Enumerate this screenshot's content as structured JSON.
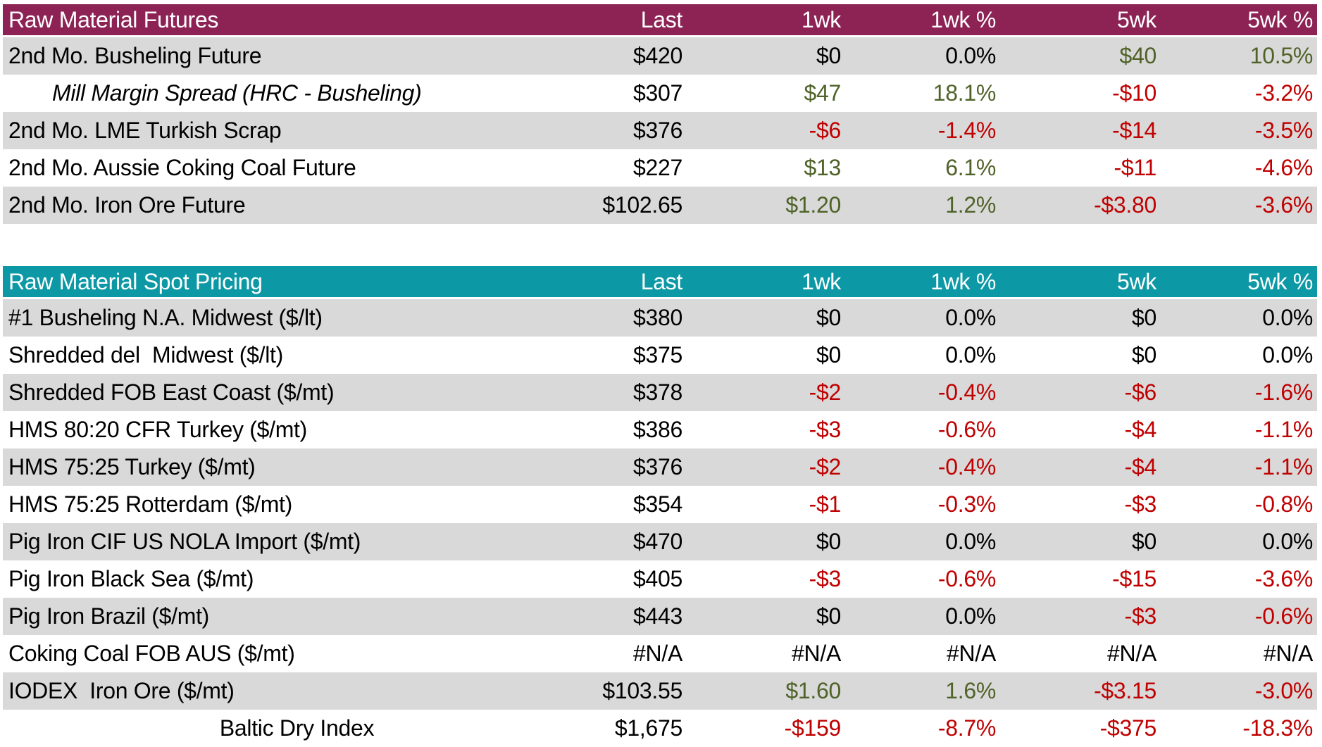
{
  "colors": {
    "futures_header_bg": "#8D2355",
    "spot_header_bg": "#0D98A6",
    "row_alt_bg": "#D9D9D9",
    "positive_text": "#4F6228",
    "negative_text": "#C00000",
    "neutral_text": "#000000",
    "header_text": "#FFFFFF"
  },
  "chart_data": [
    {
      "type": "table",
      "title": "Raw Material Futures",
      "columns": [
        "Last",
        "1wk",
        "1wk %",
        "5wk",
        "5wk %"
      ],
      "rows": [
        {
          "label": "2nd Mo. Busheling Future",
          "values": [
            "$420",
            "$0",
            "0.0%",
            "$40",
            "10.5%"
          ],
          "colors": [
            "#000000",
            "#000000",
            "#000000",
            "#4F6228",
            "#4F6228"
          ]
        },
        {
          "label": "Mill Margin Spread (HRC - Busheling)",
          "values": [
            "$307",
            "$47",
            "18.1%",
            "-$10",
            "-3.2%"
          ],
          "colors": [
            "#000000",
            "#4F6228",
            "#4F6228",
            "#C00000",
            "#C00000"
          ]
        },
        {
          "label": "2nd Mo. LME Turkish Scrap",
          "values": [
            "$376",
            "-$6",
            "-1.4%",
            "-$14",
            "-3.5%"
          ],
          "colors": [
            "#000000",
            "#C00000",
            "#C00000",
            "#C00000",
            "#C00000"
          ]
        },
        {
          "label": "2nd Mo. Aussie Coking Coal Future",
          "values": [
            "$227",
            "$13",
            "6.1%",
            "-$11",
            "-4.6%"
          ],
          "colors": [
            "#000000",
            "#4F6228",
            "#4F6228",
            "#C00000",
            "#C00000"
          ]
        },
        {
          "label": "2nd Mo. Iron Ore Future",
          "values": [
            "$102.65",
            "$1.20",
            "1.2%",
            "-$3.80",
            "-3.6%"
          ],
          "colors": [
            "#000000",
            "#4F6228",
            "#4F6228",
            "#C00000",
            "#C00000"
          ]
        }
      ]
    },
    {
      "type": "table",
      "title": "Raw Material Spot Pricing",
      "columns": [
        "Last",
        "1wk",
        "1wk %",
        "5wk",
        "5wk %"
      ],
      "rows": [
        {
          "label": "#1 Busheling N.A. Midwest ($/lt)",
          "values": [
            "$380",
            "$0",
            "0.0%",
            "$0",
            "0.0%"
          ],
          "colors": [
            "#000000",
            "#000000",
            "#000000",
            "#000000",
            "#000000"
          ]
        },
        {
          "label": "Shredded del  Midwest ($/lt)",
          "values": [
            "$375",
            "$0",
            "0.0%",
            "$0",
            "0.0%"
          ],
          "colors": [
            "#000000",
            "#000000",
            "#000000",
            "#000000",
            "#000000"
          ]
        },
        {
          "label": "Shredded FOB East Coast ($/mt)",
          "values": [
            "$378",
            "-$2",
            "-0.4%",
            "-$6",
            "-1.6%"
          ],
          "colors": [
            "#000000",
            "#C00000",
            "#C00000",
            "#C00000",
            "#C00000"
          ]
        },
        {
          "label": "HMS 80:20 CFR Turkey ($/mt)",
          "values": [
            "$386",
            "-$3",
            "-0.6%",
            "-$4",
            "-1.1%"
          ],
          "colors": [
            "#000000",
            "#C00000",
            "#C00000",
            "#C00000",
            "#C00000"
          ]
        },
        {
          "label": "HMS 75:25 Turkey ($/mt)",
          "values": [
            "$376",
            "-$2",
            "-0.4%",
            "-$4",
            "-1.1%"
          ],
          "colors": [
            "#000000",
            "#C00000",
            "#C00000",
            "#C00000",
            "#C00000"
          ]
        },
        {
          "label": "HMS 75:25 Rotterdam ($/mt)",
          "values": [
            "$354",
            "-$1",
            "-0.3%",
            "-$3",
            "-0.8%"
          ],
          "colors": [
            "#000000",
            "#C00000",
            "#C00000",
            "#C00000",
            "#C00000"
          ]
        },
        {
          "label": "Pig Iron CIF US NOLA Import ($/mt)",
          "values": [
            "$470",
            "$0",
            "0.0%",
            "$0",
            "0.0%"
          ],
          "colors": [
            "#000000",
            "#000000",
            "#000000",
            "#000000",
            "#000000"
          ]
        },
        {
          "label": "Pig Iron Black Sea ($/mt)",
          "values": [
            "$405",
            "-$3",
            "-0.6%",
            "-$15",
            "-3.6%"
          ],
          "colors": [
            "#000000",
            "#C00000",
            "#C00000",
            "#C00000",
            "#C00000"
          ]
        },
        {
          "label": "Pig Iron Brazil ($/mt)",
          "values": [
            "$443",
            "$0",
            "0.0%",
            "-$3",
            "-0.6%"
          ],
          "colors": [
            "#000000",
            "#000000",
            "#000000",
            "#C00000",
            "#C00000"
          ]
        },
        {
          "label": "Coking Coal FOB AUS ($/mt)",
          "values": [
            "#N/A",
            "#N/A",
            "#N/A",
            "#N/A",
            "#N/A"
          ],
          "colors": [
            "#000000",
            "#000000",
            "#000000",
            "#000000",
            "#000000"
          ]
        },
        {
          "label": "IODEX  Iron Ore ($/mt)",
          "values": [
            "$103.55",
            "$1.60",
            "1.6%",
            "-$3.15",
            "-3.0%"
          ],
          "colors": [
            "#000000",
            "#4F6228",
            "#4F6228",
            "#C00000",
            "#C00000"
          ]
        },
        {
          "label": "Baltic Dry Index",
          "values": [
            "$1,675",
            "-$159",
            "-8.7%",
            "-$375",
            "-18.3%"
          ],
          "colors": [
            "#000000",
            "#C00000",
            "#C00000",
            "#C00000",
            "#C00000"
          ]
        }
      ]
    }
  ]
}
